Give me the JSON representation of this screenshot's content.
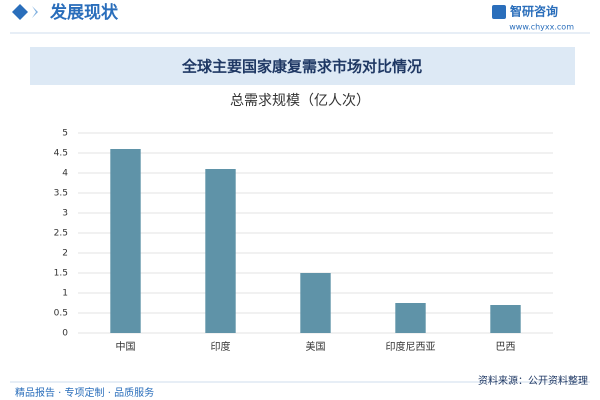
{
  "header": {
    "title": "发展现状",
    "brand": "智研咨询",
    "website": "www.chyxx.com"
  },
  "banner": "全球主要国家康复需求市场对比情况",
  "chart_data": {
    "type": "bar",
    "title": "总需求规模（亿人次）",
    "categories": [
      "中国",
      "印度",
      "美国",
      "印度尼西亚",
      "巴西"
    ],
    "values": [
      4.6,
      4.1,
      1.5,
      0.75,
      0.7
    ],
    "color": "#5f93a8",
    "ylim": [
      0,
      5
    ],
    "yticks": [
      0,
      0.5,
      1,
      1.5,
      2,
      2.5,
      3,
      3.5,
      4,
      4.5,
      5
    ],
    "grid": true
  },
  "footer": {
    "left": "精品报告 · 专项定制 · 品质服务",
    "right": "资料来源：公开资料整理"
  }
}
